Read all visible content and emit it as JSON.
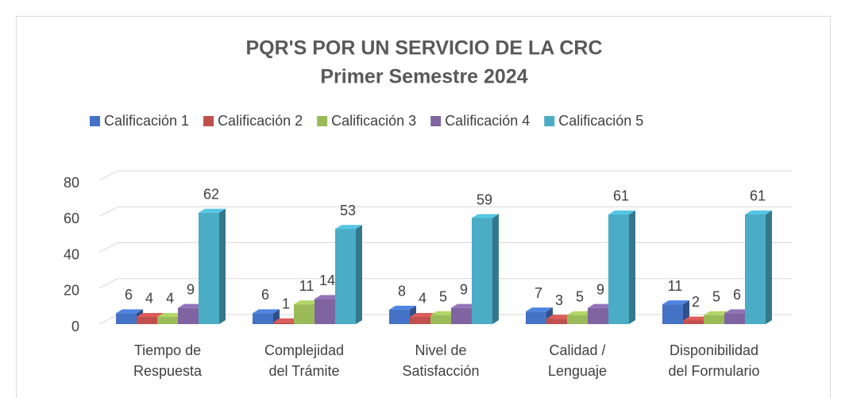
{
  "chart_data": {
    "type": "bar3d",
    "title": "PQR'S POR UN SERVICIO DE LA CRC",
    "subtitle": "Primer Semestre 2024",
    "categories": [
      "Tiempo de\nRespuesta",
      "Complejidad\ndel Trámite",
      "Nivel de\nSatisfacción",
      "Calidad /\nLenguaje",
      "Disponibilidad\ndel Formulario"
    ],
    "series": [
      {
        "name": "Calificación 1",
        "color": "#4472c4",
        "values": [
          6,
          6,
          8,
          7,
          11
        ]
      },
      {
        "name": "Calificación 2",
        "color": "#c0504d",
        "values": [
          4,
          1,
          4,
          3,
          2
        ]
      },
      {
        "name": "Calificación 3",
        "color": "#9bbb59",
        "values": [
          4,
          11,
          5,
          5,
          5
        ]
      },
      {
        "name": "Calificación 4",
        "color": "#8064a2",
        "values": [
          9,
          14,
          9,
          9,
          6
        ]
      },
      {
        "name": "Calificación 5",
        "color": "#4bacc6",
        "values": [
          62,
          53,
          59,
          61,
          61
        ]
      }
    ],
    "ylim": [
      0,
      80
    ],
    "yticks": [
      0,
      20,
      40,
      60,
      80
    ],
    "grid": true,
    "legend": "top"
  }
}
